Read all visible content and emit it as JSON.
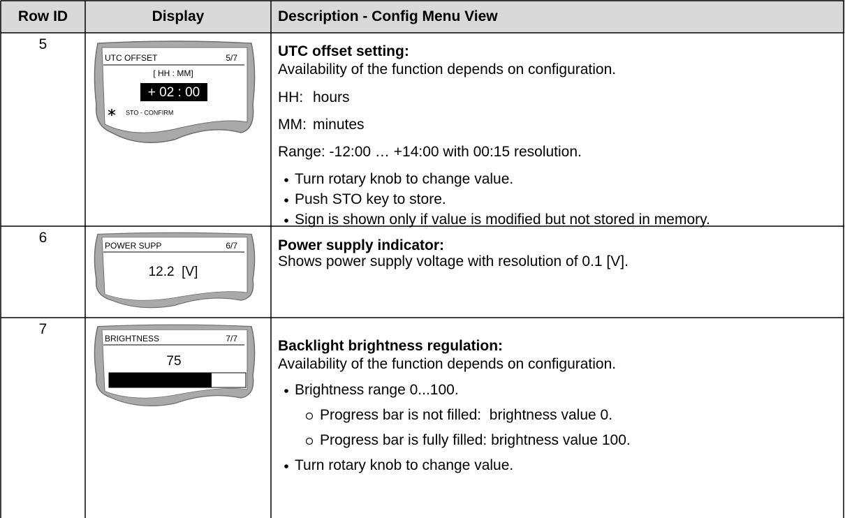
{
  "header": {
    "row_id": "Row ID",
    "display": "Display",
    "description": "Description - Config Menu View"
  },
  "rows": [
    {
      "row_id": 5,
      "display": {
        "title": "UTC OFFSET",
        "page": "5/7",
        "format": "[ HH : MM]",
        "value": "+ 02 : 00",
        "footer": "STO - CONFIRM"
      },
      "description": {
        "heading": "UTC offset setting:",
        "text": "Availability of the function depends on configuration.",
        "definitions": [
          {
            "term": "HH:",
            "meaning": "hours"
          },
          {
            "term": "MM:",
            "meaning": "minutes"
          }
        ],
        "range": "Range: -12:00 … +14:00 with 00:15 resolution.",
        "bullets": [
          "Turn rotary knob to change value.",
          "Push STO key to store.",
          "Sign is shown only if value is modified but not stored in memory."
        ]
      }
    },
    {
      "row_id": 6,
      "display": {
        "title": "POWER SUPP",
        "page": "6/7",
        "value": "12.2  [V]"
      },
      "description": {
        "heading": "Power supply indicator:",
        "text": "Shows power supply voltage with resolution of 0.1 [V]."
      }
    },
    {
      "row_id": 7,
      "display": {
        "title": "BRIGHTNESS",
        "page": "7/7",
        "value": 75
      },
      "description": {
        "heading": "Backlight brightness regulation:",
        "text": "Availability of the function depends on configuration.",
        "bullets": [
          {
            "text": "Brightness range 0...100.",
            "sub": [
              "Progress bar is not filled:  brightness value 0.",
              "Progress bar is fully filled: brightness value 100."
            ]
          },
          {
            "text": "Turn rotary knob to change value."
          }
        ]
      }
    }
  ]
}
